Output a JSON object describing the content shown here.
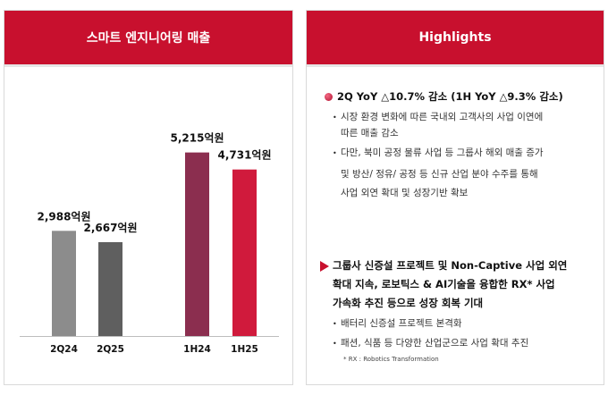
{
  "left": {
    "title": "스마트 엔지니어링 매출"
  },
  "right": {
    "title": "Highlights",
    "section1": {
      "heading": "2Q YoY △10.7% 감소 (1H YoY △9.3% 감소)",
      "bullets": [
        [
          "시장 환경 변화에 따른 국내외 고객사의 사업 이연에",
          "따른 매출 감소"
        ],
        [
          "다만, 북미 공정 물류 사업 등 그룹사 해외 매출 증가",
          "및 방산/ 정유/ 공정 등 신규 산업 분야 수주를 통해",
          "사업 외연 확대 및 성장기반 확보"
        ]
      ]
    },
    "section2": {
      "heading_lines": [
        "그룹사 신증설 프로젝트 및 Non-Captive 사업 외연",
        "확대 지속, 로보틱스 & AI기술을 융합한 RX* 사업",
        "가속화 추진 등으로 성장 회복 기대"
      ],
      "bullets": [
        "배터리 신증설 프로젝트 본격화",
        "패션, 식품 등 다양한 산업군으로 사업 확대 추진"
      ],
      "footnote": "* RX : Robotics Transformation"
    }
  },
  "chart_data": {
    "type": "bar",
    "categories": [
      "2Q24",
      "2Q25",
      "1H24",
      "1H25"
    ],
    "values": [
      2988,
      2667,
      5215,
      4731
    ],
    "value_labels": [
      "2,988억원",
      "2,667억원",
      "5,215억원",
      "4,731억원"
    ],
    "unit": "억원",
    "ylim": [
      0,
      6500
    ],
    "colors": [
      "#8c8c8c",
      "#5f5f5f",
      "#8b2e4f",
      "#d01a3c"
    ]
  }
}
